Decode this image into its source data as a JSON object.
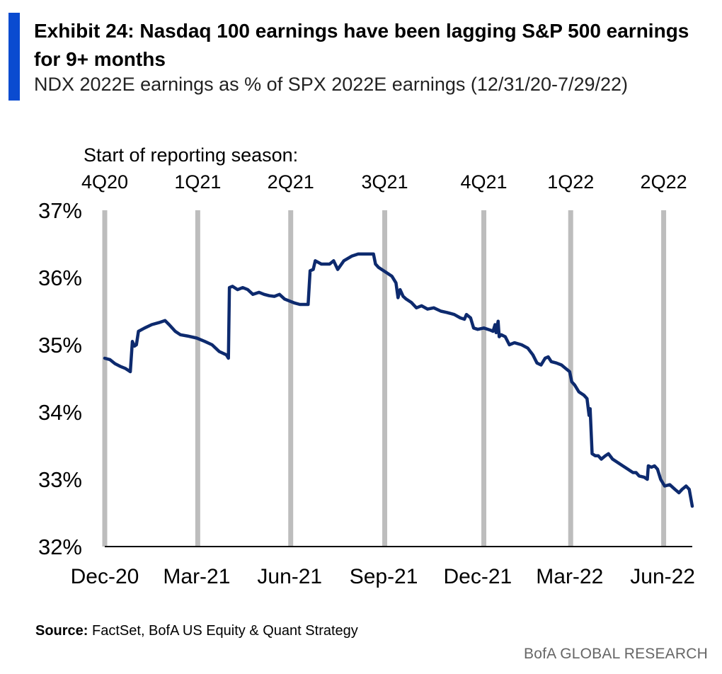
{
  "header": {
    "title": "Exhibit 24: Nasdaq  100 earnings have been lagging S&P 500 earnings for 9+ months",
    "subtitle": "NDX 2022E earnings as % of SPX 2022E earnings (12/31/20-7/29/22)"
  },
  "footer": {
    "source_label": "Source:",
    "source_text": "FactSet, BofA US Equity & Quant Strategy",
    "brand": "BofA GLOBAL RESEARCH"
  },
  "colors": {
    "accent": "#0a4bd0",
    "line": "#0d2a6e",
    "season_bar": "#bdbdbd"
  },
  "chart_data": {
    "type": "line",
    "annotation_title": "Start  of reporting  season:",
    "ylim": [
      32,
      37
    ],
    "y_ticks": [
      37,
      36,
      35,
      34,
      33,
      32
    ],
    "y_tick_labels": [
      "37%",
      "36%",
      "35%",
      "34%",
      "33%",
      "32%"
    ],
    "x_ticks": [
      {
        "date": "2020-12-31",
        "label": "Dec-20"
      },
      {
        "date": "2021-03-31",
        "label": "Mar-21"
      },
      {
        "date": "2021-06-30",
        "label": "Jun-21"
      },
      {
        "date": "2021-09-30",
        "label": "Sep-21"
      },
      {
        "date": "2021-12-31",
        "label": "Dec-21"
      },
      {
        "date": "2022-03-31",
        "label": "Mar-22"
      },
      {
        "date": "2022-06-30",
        "label": "Jun-22"
      }
    ],
    "reporting_seasons": [
      {
        "date": "2020-12-31",
        "label": "4Q20"
      },
      {
        "date": "2021-04-01",
        "label": "1Q21"
      },
      {
        "date": "2021-07-01",
        "label": "2Q21"
      },
      {
        "date": "2021-10-01",
        "label": "3Q21"
      },
      {
        "date": "2022-01-06",
        "label": "4Q21"
      },
      {
        "date": "2022-04-01",
        "label": "1Q22"
      },
      {
        "date": "2022-07-01",
        "label": "2Q22"
      }
    ],
    "series": [
      {
        "values_pct": [
          {
            "date": "2020-12-31",
            "y": 34.8
          },
          {
            "date": "2021-01-05",
            "y": 34.78
          },
          {
            "date": "2021-01-10",
            "y": 34.72
          },
          {
            "date": "2021-01-15",
            "y": 34.68
          },
          {
            "date": "2021-01-20",
            "y": 34.65
          },
          {
            "date": "2021-01-25",
            "y": 34.6
          },
          {
            "date": "2021-01-27",
            "y": 35.05
          },
          {
            "date": "2021-01-29",
            "y": 34.98
          },
          {
            "date": "2021-01-31",
            "y": 35.0
          },
          {
            "date": "2021-02-02",
            "y": 35.2
          },
          {
            "date": "2021-02-08",
            "y": 35.25
          },
          {
            "date": "2021-02-15",
            "y": 35.3
          },
          {
            "date": "2021-02-22",
            "y": 35.33
          },
          {
            "date": "2021-02-28",
            "y": 35.36
          },
          {
            "date": "2021-03-04",
            "y": 35.3
          },
          {
            "date": "2021-03-10",
            "y": 35.2
          },
          {
            "date": "2021-03-15",
            "y": 35.15
          },
          {
            "date": "2021-03-22",
            "y": 35.13
          },
          {
            "date": "2021-03-31",
            "y": 35.1
          },
          {
            "date": "2021-04-08",
            "y": 35.05
          },
          {
            "date": "2021-04-15",
            "y": 35.0
          },
          {
            "date": "2021-04-22",
            "y": 34.9
          },
          {
            "date": "2021-04-29",
            "y": 34.85
          },
          {
            "date": "2021-05-01",
            "y": 34.8
          },
          {
            "date": "2021-05-02",
            "y": 35.85
          },
          {
            "date": "2021-05-05",
            "y": 35.87
          },
          {
            "date": "2021-05-10",
            "y": 35.82
          },
          {
            "date": "2021-05-15",
            "y": 35.85
          },
          {
            "date": "2021-05-20",
            "y": 35.82
          },
          {
            "date": "2021-05-25",
            "y": 35.75
          },
          {
            "date": "2021-05-31",
            "y": 35.78
          },
          {
            "date": "2021-06-05",
            "y": 35.75
          },
          {
            "date": "2021-06-10",
            "y": 35.73
          },
          {
            "date": "2021-06-15",
            "y": 35.72
          },
          {
            "date": "2021-06-20",
            "y": 35.75
          },
          {
            "date": "2021-06-25",
            "y": 35.68
          },
          {
            "date": "2021-06-30",
            "y": 35.65
          },
          {
            "date": "2021-07-05",
            "y": 35.62
          },
          {
            "date": "2021-07-10",
            "y": 35.6
          },
          {
            "date": "2021-07-17",
            "y": 35.6
          },
          {
            "date": "2021-07-18",
            "y": 35.6
          },
          {
            "date": "2021-07-20",
            "y": 36.1
          },
          {
            "date": "2021-07-23",
            "y": 36.12
          },
          {
            "date": "2021-07-25",
            "y": 36.25
          },
          {
            "date": "2021-07-31",
            "y": 36.2
          },
          {
            "date": "2021-08-08",
            "y": 36.2
          },
          {
            "date": "2021-08-12",
            "y": 36.25
          },
          {
            "date": "2021-08-16",
            "y": 36.12
          },
          {
            "date": "2021-08-22",
            "y": 36.25
          },
          {
            "date": "2021-08-30",
            "y": 36.32
          },
          {
            "date": "2021-09-05",
            "y": 36.35
          },
          {
            "date": "2021-09-10",
            "y": 36.35
          },
          {
            "date": "2021-09-15",
            "y": 36.35
          },
          {
            "date": "2021-09-20",
            "y": 36.35
          },
          {
            "date": "2021-09-22",
            "y": 36.2
          },
          {
            "date": "2021-09-25",
            "y": 36.15
          },
          {
            "date": "2021-09-30",
            "y": 36.1
          },
          {
            "date": "2021-10-05",
            "y": 36.05
          },
          {
            "date": "2021-10-08",
            "y": 36.02
          },
          {
            "date": "2021-10-12",
            "y": 35.92
          },
          {
            "date": "2021-10-14",
            "y": 35.7
          },
          {
            "date": "2021-10-16",
            "y": 35.82
          },
          {
            "date": "2021-10-19",
            "y": 35.72
          },
          {
            "date": "2021-10-22",
            "y": 35.68
          },
          {
            "date": "2021-10-27",
            "y": 35.63
          },
          {
            "date": "2021-11-01",
            "y": 35.55
          },
          {
            "date": "2021-11-06",
            "y": 35.58
          },
          {
            "date": "2021-11-12",
            "y": 35.53
          },
          {
            "date": "2021-11-18",
            "y": 35.55
          },
          {
            "date": "2021-11-25",
            "y": 35.5
          },
          {
            "date": "2021-12-01",
            "y": 35.48
          },
          {
            "date": "2021-12-08",
            "y": 35.45
          },
          {
            "date": "2021-12-14",
            "y": 35.4
          },
          {
            "date": "2021-12-18",
            "y": 35.38
          },
          {
            "date": "2021-12-20",
            "y": 35.45
          },
          {
            "date": "2021-12-24",
            "y": 35.4
          },
          {
            "date": "2021-12-27",
            "y": 35.25
          },
          {
            "date": "2021-12-31",
            "y": 35.23
          },
          {
            "date": "2022-01-06",
            "y": 35.25
          },
          {
            "date": "2022-01-12",
            "y": 35.22
          },
          {
            "date": "2022-01-15",
            "y": 35.2
          },
          {
            "date": "2022-01-17",
            "y": 35.3
          },
          {
            "date": "2022-01-18",
            "y": 35.18
          },
          {
            "date": "2022-01-20",
            "y": 35.35
          },
          {
            "date": "2022-01-21",
            "y": 35.12
          },
          {
            "date": "2022-01-23",
            "y": 35.15
          },
          {
            "date": "2022-01-27",
            "y": 35.12
          },
          {
            "date": "2022-01-31",
            "y": 35.0
          },
          {
            "date": "2022-02-05",
            "y": 35.03
          },
          {
            "date": "2022-02-12",
            "y": 35.0
          },
          {
            "date": "2022-02-18",
            "y": 34.95
          },
          {
            "date": "2022-02-23",
            "y": 34.85
          },
          {
            "date": "2022-02-27",
            "y": 34.73
          },
          {
            "date": "2022-03-03",
            "y": 34.7
          },
          {
            "date": "2022-03-07",
            "y": 34.8
          },
          {
            "date": "2022-03-10",
            "y": 34.82
          },
          {
            "date": "2022-03-13",
            "y": 34.75
          },
          {
            "date": "2022-03-18",
            "y": 34.73
          },
          {
            "date": "2022-03-23",
            "y": 34.7
          },
          {
            "date": "2022-03-27",
            "y": 34.65
          },
          {
            "date": "2022-03-31",
            "y": 34.6
          },
          {
            "date": "2022-04-02",
            "y": 34.45
          },
          {
            "date": "2022-04-05",
            "y": 34.4
          },
          {
            "date": "2022-04-09",
            "y": 34.3
          },
          {
            "date": "2022-04-14",
            "y": 34.25
          },
          {
            "date": "2022-04-17",
            "y": 34.2
          },
          {
            "date": "2022-04-19",
            "y": 33.95
          },
          {
            "date": "2022-04-20",
            "y": 34.05
          },
          {
            "date": "2022-04-22",
            "y": 33.38
          },
          {
            "date": "2022-04-25",
            "y": 33.35
          },
          {
            "date": "2022-04-28",
            "y": 33.35
          },
          {
            "date": "2022-05-01",
            "y": 33.3
          },
          {
            "date": "2022-05-05",
            "y": 33.35
          },
          {
            "date": "2022-05-08",
            "y": 33.38
          },
          {
            "date": "2022-05-12",
            "y": 33.3
          },
          {
            "date": "2022-05-17",
            "y": 33.25
          },
          {
            "date": "2022-05-22",
            "y": 33.2
          },
          {
            "date": "2022-05-27",
            "y": 33.15
          },
          {
            "date": "2022-06-01",
            "y": 33.1
          },
          {
            "date": "2022-06-04",
            "y": 33.1
          },
          {
            "date": "2022-06-07",
            "y": 33.05
          },
          {
            "date": "2022-06-12",
            "y": 33.03
          },
          {
            "date": "2022-06-15",
            "y": 33.0
          },
          {
            "date": "2022-06-16",
            "y": 33.2
          },
          {
            "date": "2022-06-19",
            "y": 33.18
          },
          {
            "date": "2022-06-22",
            "y": 33.2
          },
          {
            "date": "2022-06-25",
            "y": 33.15
          },
          {
            "date": "2022-06-28",
            "y": 33.0
          },
          {
            "date": "2022-07-02",
            "y": 32.9
          },
          {
            "date": "2022-07-07",
            "y": 32.92
          },
          {
            "date": "2022-07-12",
            "y": 32.85
          },
          {
            "date": "2022-07-16",
            "y": 32.8
          },
          {
            "date": "2022-07-19",
            "y": 32.85
          },
          {
            "date": "2022-07-23",
            "y": 32.9
          },
          {
            "date": "2022-07-26",
            "y": 32.85
          },
          {
            "date": "2022-07-29",
            "y": 32.6
          }
        ]
      }
    ]
  }
}
